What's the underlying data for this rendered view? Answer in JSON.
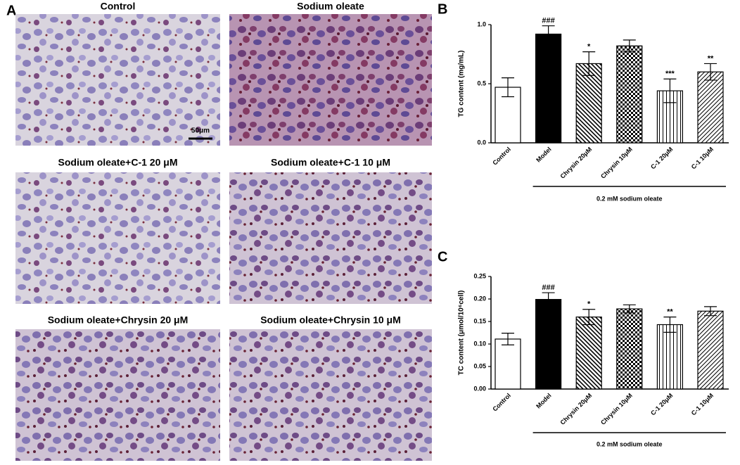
{
  "panel_labels": [
    "A",
    "B",
    "C"
  ],
  "images": [
    {
      "title": "Control",
      "tone": "light"
    },
    {
      "title": "Sodium oleate",
      "tone": "dark"
    },
    {
      "title": "Sodium oleate+C-1 20 μM",
      "tone": "light"
    },
    {
      "title": "Sodium oleate+C-1 10 μM",
      "tone": "medium"
    },
    {
      "title": "Sodium oleate+Chrysin 20 μM",
      "tone": "medium"
    },
    {
      "title": "Sodium oleate+Chrysin 10 μM",
      "tone": "medium"
    }
  ],
  "scale_bar": "50μm",
  "chart_data": [
    {
      "type": "bar",
      "ylabel": "TG content (mg/mL)",
      "categories": [
        "Control",
        "Model",
        "Chrysin 20μM",
        "Chrysin 10μM",
        "C-1 20μM",
        "C-1 10μM"
      ],
      "values": [
        0.47,
        0.92,
        0.67,
        0.82,
        0.44,
        0.6
      ],
      "errors": [
        0.08,
        0.07,
        0.1,
        0.05,
        0.1,
        0.07
      ],
      "annotations": [
        null,
        "###",
        "*",
        null,
        "***",
        "**"
      ],
      "patterns": [
        "open",
        "solid",
        "diag-back",
        "checker",
        "vertical",
        "diag-fwd"
      ],
      "color": "#000000",
      "group_label": "0.2 mM sodium oleate",
      "ylim": [
        0,
        1
      ],
      "yticks": [
        {
          "value": 0,
          "label": "0.0"
        },
        0.5,
        {
          "value": 1,
          "label": "1.0"
        }
      ]
    },
    {
      "type": "bar",
      "ylabel": "TC content (μmol/10⁶cell)",
      "categories": [
        "Control",
        "Model",
        "Chrysin 20μM",
        "Chrysin 10μM",
        "C-1 20μM",
        "C-1 10μM"
      ],
      "values": [
        0.111,
        0.199,
        0.16,
        0.178,
        0.143,
        0.173
      ],
      "errors": [
        0.013,
        0.015,
        0.017,
        0.009,
        0.017,
        0.01
      ],
      "annotations": [
        null,
        "###",
        "*",
        null,
        "**",
        null
      ],
      "patterns": [
        "open",
        "solid",
        "diag-back",
        "checker",
        "vertical",
        "diag-fwd"
      ],
      "color": "#000000",
      "group_label": "0.2 mM sodium oleate",
      "ylim": [
        0,
        0.25
      ],
      "yticks": [
        {
          "value": 0,
          "label": "0.00"
        },
        {
          "value": 0.05,
          "label": "0.05"
        },
        {
          "value": 0.1,
          "label": "0.10"
        },
        {
          "value": 0.15,
          "label": "0.15"
        },
        {
          "value": 0.2,
          "label": "0.20"
        },
        {
          "value": 0.25,
          "label": "0.25"
        }
      ]
    }
  ]
}
